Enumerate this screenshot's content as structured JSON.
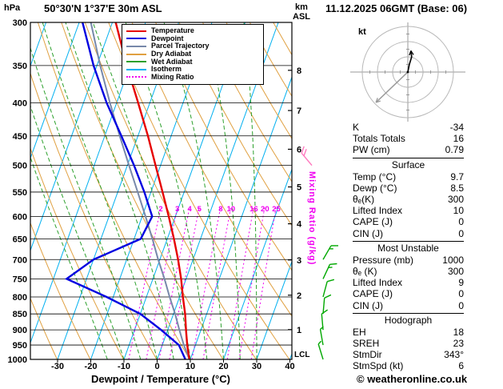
{
  "header": {
    "pressure_unit": "hPa",
    "station": "50°30'N 1°37'E 30m ASL",
    "datetime": "11.12.2025 06GMT (Base: 06)",
    "alt_unit_line1": "km",
    "alt_unit_line2": "ASL"
  },
  "axes": {
    "xlabel": "Dewpoint / Temperature (°C)",
    "x_ticks": [
      -30,
      -20,
      -10,
      0,
      10,
      20,
      30,
      40
    ],
    "pressure_ticks": [
      300,
      350,
      400,
      450,
      500,
      550,
      600,
      650,
      700,
      750,
      800,
      850,
      900,
      950,
      1000
    ],
    "km_ticks": [
      1,
      2,
      3,
      4,
      5,
      6,
      7,
      8
    ],
    "km_tick_pressures_hpa": [
      899,
      795,
      701,
      616,
      540,
      472,
      411,
      356
    ],
    "lcl": "LCL",
    "mr_axis_label": "Mixing Ratio (g/kg)",
    "mr_values": [
      2,
      3,
      4,
      5,
      8,
      10,
      16,
      20,
      25
    ]
  },
  "colors": {
    "temperature": "#e60000",
    "dewpoint": "#0000e0",
    "parcel": "#7788aa",
    "dry_adiabat": "#e0a040",
    "wet_adiabat": "#2ca02c",
    "isotherm": "#00b0f0",
    "mixing_ratio": "#f000f0",
    "grid": "#000000",
    "wind_barb": "#00a800",
    "wind_barb_alt": "#ff7bbf"
  },
  "legend": [
    {
      "label": "Temperature",
      "color": "#e60000",
      "line": "solid",
      "weight": 2
    },
    {
      "label": "Dewpoint",
      "color": "#0000e0",
      "line": "solid",
      "weight": 2
    },
    {
      "label": "Parcel Trajectory",
      "color": "#7788aa",
      "line": "solid",
      "weight": 2
    },
    {
      "label": "Dry Adiabat",
      "color": "#e0a040",
      "line": "solid",
      "weight": 2
    },
    {
      "label": "Wet Adiabat",
      "color": "#2ca02c",
      "line": "solid",
      "weight": 2
    },
    {
      "label": "Isotherm",
      "color": "#00b0f0",
      "line": "solid",
      "weight": 2
    },
    {
      "label": "Mixing Ratio",
      "color": "#f000f0",
      "line": "dotted",
      "weight": 2
    }
  ],
  "chart_data": {
    "type": "skewt_log_p",
    "title": "50°30'N 1°37'E 30m ASL",
    "pressure_axis_hpa": [
      300,
      1000
    ],
    "temp_axis_c": [
      -40,
      40
    ],
    "grid": "on",
    "legend_position": "top-center",
    "series": [
      {
        "name": "Temperature",
        "color": "#e60000",
        "points_p_t": [
          [
            1000,
            9.7
          ],
          [
            950,
            7.5
          ],
          [
            900,
            5.5
          ],
          [
            850,
            3.5
          ],
          [
            800,
            1.0
          ],
          [
            750,
            -1.5
          ],
          [
            700,
            -4.5
          ],
          [
            650,
            -8.0
          ],
          [
            600,
            -12.0
          ],
          [
            550,
            -16.5
          ],
          [
            500,
            -21.5
          ],
          [
            450,
            -27.0
          ],
          [
            400,
            -33.5
          ],
          [
            350,
            -41.0
          ],
          [
            300,
            -49.0
          ]
        ]
      },
      {
        "name": "Dewpoint",
        "color": "#0000e0",
        "points_p_t": [
          [
            1000,
            8.5
          ],
          [
            950,
            5.0
          ],
          [
            900,
            -2.0
          ],
          [
            850,
            -10.0
          ],
          [
            800,
            -22.0
          ],
          [
            750,
            -36.0
          ],
          [
            700,
            -30.0
          ],
          [
            650,
            -18.0
          ],
          [
            600,
            -17.0
          ],
          [
            550,
            -22.0
          ],
          [
            500,
            -28.0
          ],
          [
            450,
            -35.0
          ],
          [
            400,
            -43.0
          ],
          [
            350,
            -51.0
          ],
          [
            300,
            -59.0
          ]
        ]
      },
      {
        "name": "Parcel Trajectory",
        "color": "#7788aa",
        "points_p_t": [
          [
            1000,
            9.7
          ],
          [
            950,
            6.5
          ],
          [
            900,
            3.5
          ],
          [
            850,
            0.5
          ],
          [
            800,
            -3.0
          ],
          [
            750,
            -6.5
          ],
          [
            700,
            -10.5
          ],
          [
            650,
            -14.5
          ],
          [
            600,
            -19.0
          ],
          [
            550,
            -24.0
          ],
          [
            500,
            -29.5
          ],
          [
            450,
            -35.5
          ],
          [
            400,
            -42.0
          ],
          [
            350,
            -49.0
          ],
          [
            300,
            -56.5
          ]
        ]
      }
    ],
    "background_lines": {
      "isotherms_c": [
        -110,
        -100,
        -90,
        -80,
        -70,
        -60,
        -50,
        -40,
        -30,
        -20,
        -10,
        0,
        10,
        20,
        30,
        40
      ],
      "dry_adiabats_theta_k": [
        233,
        243,
        253,
        263,
        273,
        283,
        293,
        303,
        313,
        323,
        333,
        343,
        353,
        363,
        373,
        383,
        393
      ],
      "wet_adiabats_thetaw_c": [
        -15,
        -10,
        -5,
        0,
        5,
        10,
        15,
        20,
        25,
        30
      ],
      "mixing_ratios_g_kg": [
        2,
        3,
        4,
        5,
        8,
        10,
        16,
        20,
        25
      ]
    },
    "wind_barbs": [
      {
        "p_hpa": 1000,
        "dir_deg": 343,
        "speed_kt": 6
      },
      {
        "p_hpa": 950,
        "dir_deg": 350,
        "speed_kt": 5
      },
      {
        "p_hpa": 900,
        "dir_deg": 355,
        "speed_kt": 10
      },
      {
        "p_hpa": 850,
        "dir_deg": 5,
        "speed_kt": 10
      },
      {
        "p_hpa": 800,
        "dir_deg": 15,
        "speed_kt": 10
      },
      {
        "p_hpa": 750,
        "dir_deg": 25,
        "speed_kt": 15
      },
      {
        "p_hpa": 700,
        "dir_deg": 30,
        "speed_kt": 15
      },
      {
        "p_hpa": 500,
        "dir_deg": 320,
        "speed_kt": 20,
        "secondary": true
      }
    ]
  },
  "hodograph": {
    "unit": "kt",
    "ring_radii_kt": [
      10,
      20,
      30
    ],
    "trace_uv_kt": [
      [
        0,
        0
      ],
      [
        1,
        5
      ],
      [
        2.5,
        10
      ],
      [
        2,
        14
      ]
    ],
    "storm_arrow_uv_kt": [
      -21,
      -20
    ]
  },
  "table": {
    "top_rows": [
      [
        "K",
        "-34"
      ],
      [
        "Totals Totals",
        "16"
      ],
      [
        "PW (cm)",
        "0.79"
      ]
    ],
    "sections": [
      {
        "title": "Surface",
        "rows": [
          [
            "Temp (°C)",
            "9.7"
          ],
          [
            "Dewp (°C)",
            "8.5"
          ],
          [
            "θₑ(K)",
            "300"
          ],
          [
            "Lifted Index",
            "10"
          ],
          [
            "CAPE (J)",
            "0"
          ],
          [
            "CIN (J)",
            "0"
          ]
        ]
      },
      {
        "title": "Most Unstable",
        "rows": [
          [
            "Pressure (mb)",
            "1000"
          ],
          [
            "θₑ (K)",
            "300"
          ],
          [
            "Lifted Index",
            "9"
          ],
          [
            "CAPE (J)",
            "0"
          ],
          [
            "CIN (J)",
            "0"
          ]
        ]
      },
      {
        "title": "Hodograph",
        "rows": [
          [
            "EH",
            "18"
          ],
          [
            "SREH",
            "23"
          ],
          [
            "StmDir",
            "343°"
          ],
          [
            "StmSpd (kt)",
            "6"
          ]
        ]
      }
    ]
  },
  "footer": {
    "copyright": "© weatheronline.co.uk"
  }
}
